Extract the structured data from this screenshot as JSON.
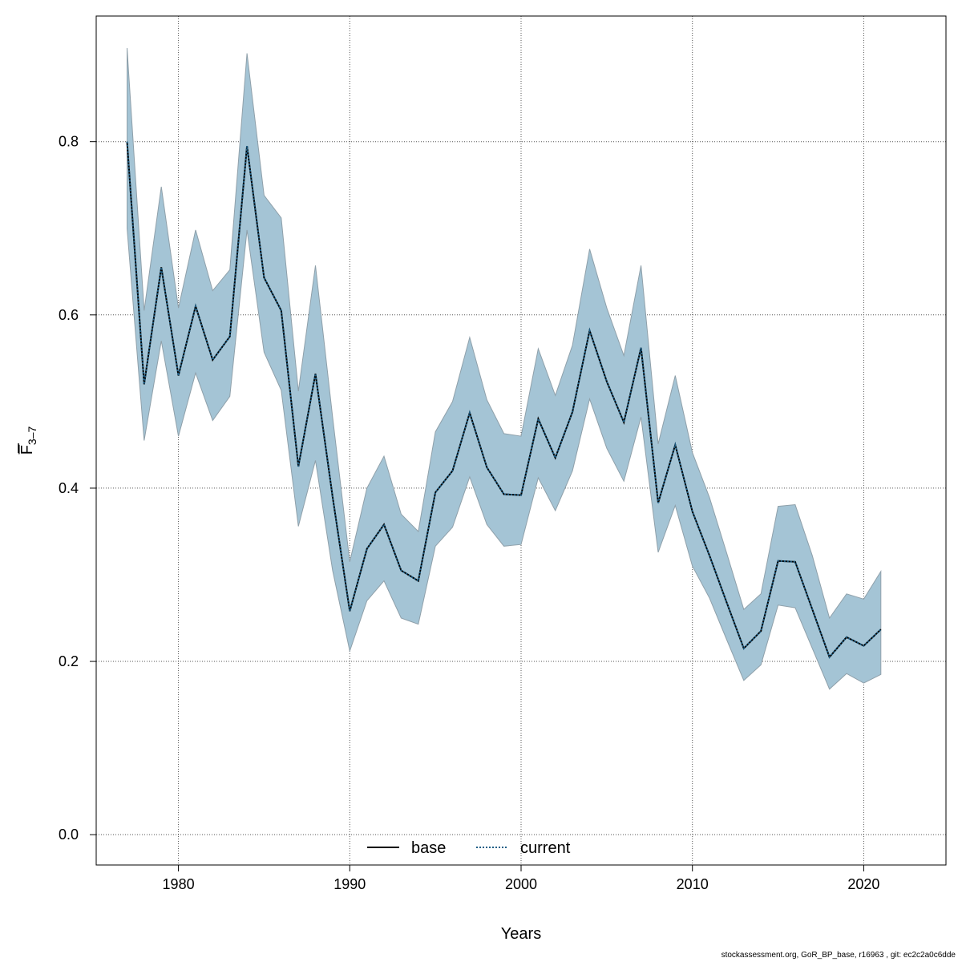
{
  "chart_data": {
    "type": "area",
    "xlabel": "Years",
    "ylabel": "F̅",
    "ylabel_subscript": "3–7",
    "xlim": [
      1975.2,
      2024.8
    ],
    "ylim": [
      -0.035,
      0.945
    ],
    "x_ticks": [
      1980,
      1990,
      2000,
      2010,
      2020
    ],
    "x_tick_labels": [
      "1980",
      "1990",
      "2000",
      "2010",
      "2020"
    ],
    "y_ticks": [
      0.0,
      0.2,
      0.4,
      0.6,
      0.8
    ],
    "y_tick_labels": [
      "0.0",
      "0.2",
      "0.4",
      "0.6",
      "0.8"
    ],
    "grid": true,
    "legend_position": "bottom-center",
    "legend": [
      {
        "label": "base",
        "style": "solid",
        "color": "#000000"
      },
      {
        "label": "current",
        "style": "dotted",
        "color": "#1f5f86"
      }
    ],
    "band_color": "#a4c4d5",
    "x": [
      1977,
      1978,
      1979,
      1980,
      1981,
      1982,
      1983,
      1984,
      1985,
      1986,
      1987,
      1988,
      1989,
      1990,
      1991,
      1992,
      1993,
      1994,
      1995,
      1996,
      1997,
      1998,
      1999,
      2000,
      2001,
      2002,
      2003,
      2004,
      2005,
      2006,
      2007,
      2008,
      2009,
      2010,
      2011,
      2012,
      2013,
      2014,
      2015,
      2016,
      2017,
      2018,
      2019,
      2020,
      2021
    ],
    "series": [
      {
        "name": "base",
        "values": [
          0.8,
          0.52,
          0.655,
          0.53,
          0.61,
          0.548,
          0.575,
          0.795,
          0.643,
          0.605,
          0.425,
          0.532,
          0.39,
          0.258,
          0.33,
          0.358,
          0.305,
          0.293,
          0.395,
          0.42,
          0.487,
          0.424,
          0.393,
          0.392,
          0.48,
          0.435,
          0.488,
          0.582,
          0.523,
          0.476,
          0.562,
          0.383,
          0.45,
          0.373,
          0.322,
          0.268,
          0.215,
          0.235,
          0.316,
          0.315,
          0.26,
          0.205,
          0.228,
          0.218,
          0.237
        ]
      },
      {
        "name": "current",
        "values": [
          0.8,
          0.52,
          0.655,
          0.53,
          0.61,
          0.548,
          0.575,
          0.795,
          0.643,
          0.605,
          0.425,
          0.532,
          0.39,
          0.258,
          0.33,
          0.358,
          0.305,
          0.293,
          0.395,
          0.42,
          0.487,
          0.424,
          0.393,
          0.392,
          0.48,
          0.435,
          0.488,
          0.582,
          0.523,
          0.476,
          0.562,
          0.383,
          0.45,
          0.373,
          0.322,
          0.268,
          0.215,
          0.235,
          0.316,
          0.315,
          0.26,
          0.205,
          0.228,
          0.218,
          0.237
        ]
      }
    ],
    "band_upper": [
      0.908,
      0.605,
      0.748,
      0.608,
      0.698,
      0.628,
      0.652,
      0.902,
      0.738,
      0.712,
      0.512,
      0.657,
      0.482,
      0.315,
      0.4,
      0.437,
      0.37,
      0.35,
      0.465,
      0.5,
      0.574,
      0.502,
      0.463,
      0.46,
      0.561,
      0.507,
      0.565,
      0.676,
      0.608,
      0.553,
      0.657,
      0.451,
      0.53,
      0.441,
      0.389,
      0.325,
      0.26,
      0.278,
      0.379,
      0.381,
      0.322,
      0.25,
      0.278,
      0.272,
      0.304
    ],
    "band_lower": [
      0.7,
      0.455,
      0.57,
      0.46,
      0.533,
      0.478,
      0.506,
      0.698,
      0.557,
      0.513,
      0.356,
      0.432,
      0.305,
      0.212,
      0.27,
      0.293,
      0.25,
      0.243,
      0.333,
      0.355,
      0.413,
      0.358,
      0.333,
      0.335,
      0.412,
      0.374,
      0.42,
      0.503,
      0.446,
      0.408,
      0.482,
      0.326,
      0.38,
      0.31,
      0.273,
      0.225,
      0.178,
      0.196,
      0.265,
      0.262,
      0.215,
      0.168,
      0.186,
      0.175,
      0.185
    ]
  },
  "footer": "stockassessment.org, GoR_BP_base, r16963 , git: ec2c2a0c6dde"
}
